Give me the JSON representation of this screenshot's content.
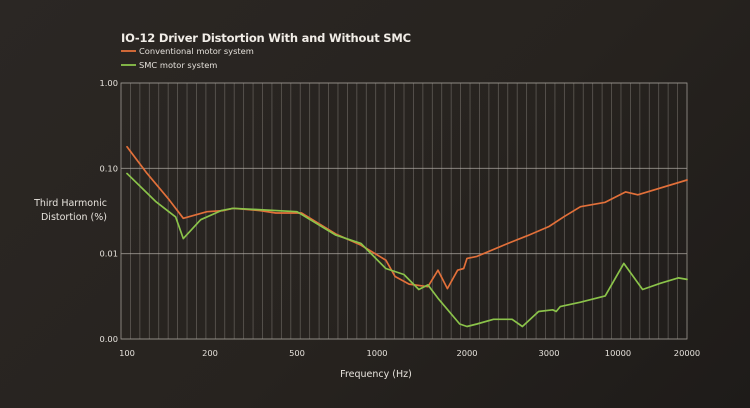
{
  "chart_data": {
    "type": "line",
    "title": "IO-12 Driver Distortion With and Without SMC",
    "xlabel": "Frequency (Hz)",
    "ylabel": [
      "Third Harmonic",
      "Distortion (%)"
    ],
    "x_scale": "log (piecewise between labeled ticks)",
    "y_scale": "log",
    "xlim": [
      100,
      20000
    ],
    "ylim": [
      0.001,
      1.0
    ],
    "x_ticks": [
      100,
      200,
      500,
      1000,
      2000,
      3000,
      10000,
      20000
    ],
    "x_tick_labels": [
      "100",
      "200",
      "500",
      "1000",
      "2000",
      "3000",
      "10000",
      "20000"
    ],
    "y_ticks": [
      1.0,
      0.1,
      0.01,
      0.001
    ],
    "y_tick_labels": [
      "1.00",
      "0.10",
      "0.01",
      "0.00"
    ],
    "grid": true,
    "legend_position": "top-left",
    "series": [
      {
        "name": "Conventional motor system",
        "color": "#e2703a",
        "points": [
          [
            100,
            0.179
          ],
          [
            118,
            0.088
          ],
          [
            142,
            0.043
          ],
          [
            160,
            0.026
          ],
          [
            195,
            0.031
          ],
          [
            230,
            0.032
          ],
          [
            255,
            0.034
          ],
          [
            340,
            0.032
          ],
          [
            400,
            0.03
          ],
          [
            520,
            0.03
          ],
          [
            700,
            0.017
          ],
          [
            870,
            0.0126
          ],
          [
            1070,
            0.0084
          ],
          [
            1150,
            0.0054
          ],
          [
            1280,
            0.0044
          ],
          [
            1480,
            0.0041
          ],
          [
            1600,
            0.0064
          ],
          [
            1720,
            0.0039
          ],
          [
            1860,
            0.0064
          ],
          [
            1950,
            0.0067
          ],
          [
            2000,
            0.0088
          ],
          [
            2100,
            0.0093
          ],
          [
            2450,
            0.0132
          ],
          [
            2700,
            0.0163
          ],
          [
            3000,
            0.0208
          ],
          [
            3900,
            0.0271
          ],
          [
            5200,
            0.0355
          ],
          [
            8000,
            0.04
          ],
          [
            10800,
            0.053
          ],
          [
            12200,
            0.049
          ],
          [
            20000,
            0.073
          ]
        ]
      },
      {
        "name": "SMC motor system",
        "color": "#8bc34a",
        "points": [
          [
            100,
            0.087
          ],
          [
            127,
            0.041
          ],
          [
            150,
            0.027
          ],
          [
            160,
            0.015
          ],
          [
            185,
            0.025
          ],
          [
            225,
            0.032
          ],
          [
            255,
            0.034
          ],
          [
            500,
            0.031
          ],
          [
            700,
            0.0165
          ],
          [
            870,
            0.0132
          ],
          [
            1070,
            0.0067
          ],
          [
            1230,
            0.0057
          ],
          [
            1380,
            0.0038
          ],
          [
            1480,
            0.0043
          ],
          [
            1600,
            0.003
          ],
          [
            1890,
            0.0015
          ],
          [
            2000,
            0.0014
          ],
          [
            2100,
            0.0015
          ],
          [
            2280,
            0.0017
          ],
          [
            2500,
            0.0017
          ],
          [
            2630,
            0.0014
          ],
          [
            2850,
            0.0021
          ],
          [
            3200,
            0.0022
          ],
          [
            3400,
            0.0021
          ],
          [
            3650,
            0.0024
          ],
          [
            5200,
            0.0027
          ],
          [
            8000,
            0.0032
          ],
          [
            10600,
            0.0077
          ],
          [
            12800,
            0.0038
          ],
          [
            15300,
            0.0045
          ],
          [
            18300,
            0.0052
          ],
          [
            20000,
            0.005
          ]
        ]
      }
    ]
  }
}
